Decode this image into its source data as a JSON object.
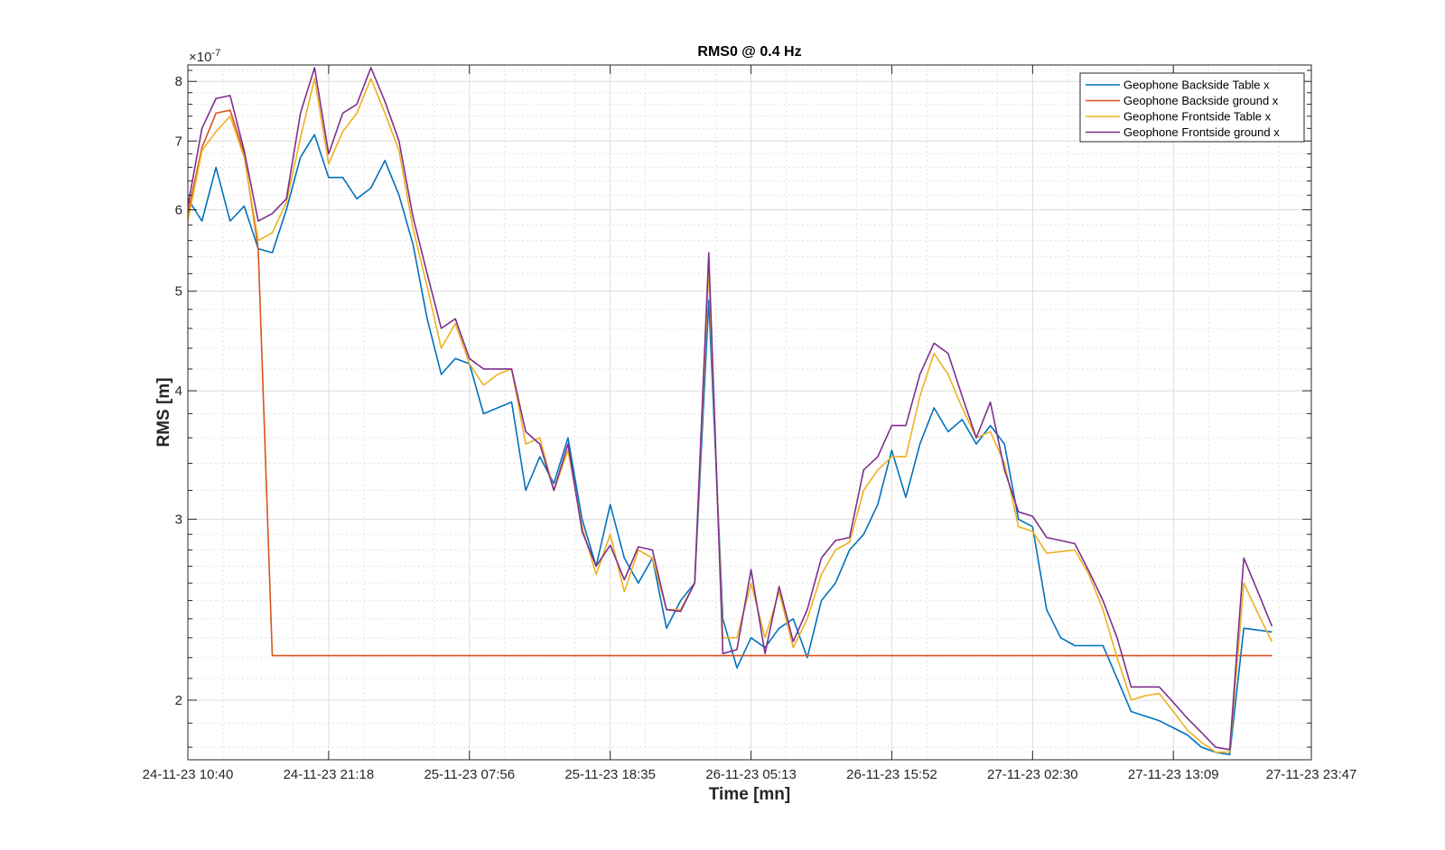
{
  "chart_data": {
    "type": "line",
    "title": "RMS0 @ 0.4 Hz",
    "xlabel": "Time [mn]",
    "ylabel": "RMS [m]",
    "y_scale": "log",
    "y_exponent_label": "×10",
    "y_exponent_power": "-7",
    "y_multiplier": 1e-07,
    "ylim": [
      1.75,
      8.3
    ],
    "xlim": [
      0,
      79.8
    ],
    "grid": true,
    "minor_grid": true,
    "legend_position": "top-right",
    "x_ticks": [
      {
        "x": 0,
        "label": "24-11-23 10:40"
      },
      {
        "x": 10,
        "label": "24-11-23 21:18"
      },
      {
        "x": 20,
        "label": "25-11-23 07:56"
      },
      {
        "x": 30,
        "label": "25-11-23 18:35"
      },
      {
        "x": 40,
        "label": "26-11-23 05:13"
      },
      {
        "x": 50,
        "label": "26-11-23 15:52"
      },
      {
        "x": 60,
        "label": "27-11-23 02:30"
      },
      {
        "x": 70,
        "label": "27-11-23 13:09"
      },
      {
        "x": 80,
        "label": "27-11-23 23:47"
      }
    ],
    "y_ticks": [
      {
        "v": 2,
        "label": "2"
      },
      {
        "v": 3,
        "label": "3"
      },
      {
        "v": 4,
        "label": "4"
      },
      {
        "v": 5,
        "label": "5"
      },
      {
        "v": 6,
        "label": "6"
      },
      {
        "v": 7,
        "label": "7"
      },
      {
        "v": 8,
        "label": "8"
      }
    ],
    "y_minor_ticks": [
      1.8,
      1.9,
      2.1,
      2.2,
      2.3,
      2.4,
      2.5,
      2.6,
      2.7,
      2.8,
      2.9,
      3.2,
      3.4,
      3.6,
      3.8,
      4.2,
      4.4,
      4.6,
      4.8,
      5.2,
      5.4,
      5.6,
      5.8,
      6.2,
      6.4,
      6.6,
      6.8,
      7.2,
      7.4,
      7.6,
      7.8,
      8.2
    ],
    "series": [
      {
        "name": "Geophone Backside Table x",
        "color": "#0072BD",
        "points": [
          [
            0,
            6.15
          ],
          [
            1,
            5.85
          ],
          [
            2,
            6.6
          ],
          [
            3,
            5.85
          ],
          [
            4,
            6.05
          ],
          [
            5,
            5.5
          ],
          [
            6,
            5.45
          ],
          [
            7,
            6.0
          ],
          [
            8,
            6.75
          ],
          [
            9,
            7.1
          ],
          [
            10,
            6.45
          ],
          [
            11,
            6.45
          ],
          [
            12,
            6.15
          ],
          [
            13,
            6.3
          ],
          [
            14,
            6.7
          ],
          [
            15,
            6.2
          ],
          [
            16,
            5.55
          ],
          [
            17,
            4.7
          ],
          [
            18,
            4.15
          ],
          [
            19,
            4.3
          ],
          [
            20,
            4.25
          ],
          [
            21,
            3.8
          ],
          [
            22,
            3.85
          ],
          [
            23,
            3.9
          ],
          [
            24,
            3.2
          ],
          [
            25,
            3.45
          ],
          [
            26,
            3.25
          ],
          [
            27,
            3.6
          ],
          [
            28,
            3.0
          ],
          [
            29,
            2.7
          ],
          [
            30,
            3.1
          ],
          [
            31,
            2.75
          ],
          [
            32,
            2.6
          ],
          [
            33,
            2.75
          ],
          [
            34,
            2.35
          ],
          [
            35,
            2.5
          ],
          [
            36,
            2.6
          ],
          [
            37,
            4.9
          ],
          [
            38,
            2.4
          ],
          [
            39,
            2.15
          ],
          [
            40,
            2.3
          ],
          [
            41,
            2.25
          ],
          [
            42,
            2.35
          ],
          [
            43,
            2.4
          ],
          [
            44,
            2.2
          ],
          [
            45,
            2.5
          ],
          [
            46,
            2.6
          ],
          [
            47,
            2.8
          ],
          [
            48,
            2.9
          ],
          [
            49,
            3.1
          ],
          [
            50,
            3.5
          ],
          [
            51,
            3.15
          ],
          [
            52,
            3.55
          ],
          [
            53,
            3.85
          ],
          [
            54,
            3.65
          ],
          [
            55,
            3.75
          ],
          [
            56,
            3.55
          ],
          [
            57,
            3.7
          ],
          [
            58,
            3.55
          ],
          [
            59,
            3.0
          ],
          [
            60,
            2.95
          ],
          [
            61,
            2.45
          ],
          [
            62,
            2.3
          ],
          [
            63,
            2.26
          ],
          [
            64,
            2.26
          ],
          [
            65,
            2.26
          ],
          [
            66,
            2.1
          ],
          [
            67,
            1.95
          ],
          [
            68,
            1.93
          ],
          [
            69,
            1.91
          ],
          [
            70,
            1.88
          ],
          [
            71,
            1.85
          ],
          [
            72,
            1.8
          ],
          [
            73,
            1.78
          ],
          [
            74,
            1.77
          ],
          [
            75,
            2.35
          ],
          [
            76,
            2.34
          ],
          [
            77,
            2.33
          ]
        ]
      },
      {
        "name": "Geophone Backside ground x",
        "color": "#D95319",
        "points": [
          [
            0,
            5.95
          ],
          [
            1,
            6.9
          ],
          [
            2,
            7.45
          ],
          [
            3,
            7.5
          ],
          [
            4,
            6.8
          ],
          [
            5,
            5.5
          ],
          [
            6,
            2.21
          ],
          [
            8,
            2.21
          ],
          [
            10,
            2.21
          ],
          [
            12,
            2.21
          ],
          [
            14,
            2.21
          ],
          [
            16,
            2.21
          ],
          [
            18,
            2.21
          ],
          [
            20,
            2.21
          ],
          [
            22,
            2.21
          ],
          [
            24,
            2.21
          ],
          [
            26,
            2.21
          ],
          [
            28,
            2.21
          ],
          [
            30,
            2.21
          ],
          [
            32,
            2.21
          ],
          [
            34,
            2.21
          ],
          [
            36,
            2.21
          ],
          [
            38,
            2.21
          ],
          [
            40,
            2.21
          ],
          [
            42,
            2.21
          ],
          [
            44,
            2.21
          ],
          [
            46,
            2.21
          ],
          [
            48,
            2.21
          ],
          [
            50,
            2.21
          ],
          [
            52,
            2.21
          ],
          [
            54,
            2.21
          ],
          [
            56,
            2.21
          ],
          [
            58,
            2.21
          ],
          [
            60,
            2.21
          ],
          [
            62,
            2.21
          ],
          [
            64,
            2.21
          ],
          [
            66,
            2.21
          ],
          [
            68,
            2.21
          ],
          [
            70,
            2.21
          ],
          [
            72,
            2.21
          ],
          [
            74,
            2.21
          ],
          [
            76,
            2.21
          ],
          [
            77,
            2.21
          ]
        ]
      },
      {
        "name": "Geophone Frontside Table x",
        "color": "#EDB120",
        "points": [
          [
            0,
            5.85
          ],
          [
            1,
            6.85
          ],
          [
            2,
            7.15
          ],
          [
            3,
            7.4
          ],
          [
            4,
            6.75
          ],
          [
            5,
            5.6
          ],
          [
            6,
            5.7
          ],
          [
            7,
            6.1
          ],
          [
            8,
            7.05
          ],
          [
            9,
            8.05
          ],
          [
            10,
            6.65
          ],
          [
            11,
            7.15
          ],
          [
            12,
            7.45
          ],
          [
            13,
            8.05
          ],
          [
            14,
            7.45
          ],
          [
            15,
            6.85
          ],
          [
            16,
            5.75
          ],
          [
            17,
            5.05
          ],
          [
            18,
            4.4
          ],
          [
            19,
            4.65
          ],
          [
            20,
            4.25
          ],
          [
            21,
            4.05
          ],
          [
            22,
            4.15
          ],
          [
            23,
            4.2
          ],
          [
            24,
            3.55
          ],
          [
            25,
            3.6
          ],
          [
            26,
            3.2
          ],
          [
            27,
            3.5
          ],
          [
            28,
            2.95
          ],
          [
            29,
            2.65
          ],
          [
            30,
            2.9
          ],
          [
            31,
            2.55
          ],
          [
            32,
            2.8
          ],
          [
            33,
            2.75
          ],
          [
            34,
            2.45
          ],
          [
            35,
            2.45
          ],
          [
            36,
            2.6
          ],
          [
            37,
            5.25
          ],
          [
            38,
            2.3
          ],
          [
            39,
            2.3
          ],
          [
            40,
            2.6
          ],
          [
            41,
            2.3
          ],
          [
            42,
            2.55
          ],
          [
            43,
            2.25
          ],
          [
            44,
            2.4
          ],
          [
            45,
            2.65
          ],
          [
            46,
            2.8
          ],
          [
            47,
            2.85
          ],
          [
            48,
            3.2
          ],
          [
            49,
            3.35
          ],
          [
            50,
            3.45
          ],
          [
            51,
            3.45
          ],
          [
            52,
            3.95
          ],
          [
            53,
            4.35
          ],
          [
            54,
            4.15
          ],
          [
            55,
            3.85
          ],
          [
            56,
            3.6
          ],
          [
            57,
            3.65
          ],
          [
            58,
            3.4
          ],
          [
            59,
            2.95
          ],
          [
            60,
            2.92
          ],
          [
            61,
            2.78
          ],
          [
            62,
            2.79
          ],
          [
            63,
            2.8
          ],
          [
            64,
            2.65
          ],
          [
            65,
            2.45
          ],
          [
            66,
            2.2
          ],
          [
            67,
            2.0
          ],
          [
            68,
            2.02
          ],
          [
            69,
            2.03
          ],
          [
            70,
            1.95
          ],
          [
            71,
            1.87
          ],
          [
            72,
            1.82
          ],
          [
            73,
            1.78
          ],
          [
            74,
            1.78
          ],
          [
            75,
            2.6
          ],
          [
            76,
            2.43
          ],
          [
            77,
            2.28
          ]
        ]
      },
      {
        "name": "Geophone Frontside ground x",
        "color": "#7E2F8E",
        "points": [
          [
            0,
            6.05
          ],
          [
            1,
            7.2
          ],
          [
            2,
            7.7
          ],
          [
            3,
            7.75
          ],
          [
            4,
            6.85
          ],
          [
            5,
            5.85
          ],
          [
            6,
            5.95
          ],
          [
            7,
            6.15
          ],
          [
            8,
            7.45
          ],
          [
            9,
            8.25
          ],
          [
            10,
            6.8
          ],
          [
            11,
            7.45
          ],
          [
            12,
            7.6
          ],
          [
            13,
            8.25
          ],
          [
            14,
            7.65
          ],
          [
            15,
            7.0
          ],
          [
            16,
            5.9
          ],
          [
            17,
            5.2
          ],
          [
            18,
            4.6
          ],
          [
            19,
            4.7
          ],
          [
            20,
            4.3
          ],
          [
            21,
            4.2
          ],
          [
            22,
            4.2
          ],
          [
            23,
            4.2
          ],
          [
            24,
            3.65
          ],
          [
            25,
            3.55
          ],
          [
            26,
            3.2
          ],
          [
            27,
            3.55
          ],
          [
            28,
            2.92
          ],
          [
            29,
            2.7
          ],
          [
            30,
            2.83
          ],
          [
            31,
            2.62
          ],
          [
            32,
            2.82
          ],
          [
            33,
            2.8
          ],
          [
            34,
            2.45
          ],
          [
            35,
            2.44
          ],
          [
            36,
            2.6
          ],
          [
            37,
            5.45
          ],
          [
            38,
            2.22
          ],
          [
            39,
            2.24
          ],
          [
            40,
            2.68
          ],
          [
            41,
            2.22
          ],
          [
            42,
            2.58
          ],
          [
            43,
            2.28
          ],
          [
            44,
            2.45
          ],
          [
            45,
            2.75
          ],
          [
            46,
            2.86
          ],
          [
            47,
            2.88
          ],
          [
            48,
            3.35
          ],
          [
            49,
            3.45
          ],
          [
            50,
            3.7
          ],
          [
            51,
            3.7
          ],
          [
            52,
            4.15
          ],
          [
            53,
            4.45
          ],
          [
            54,
            4.35
          ],
          [
            55,
            3.95
          ],
          [
            56,
            3.6
          ],
          [
            57,
            3.9
          ],
          [
            58,
            3.35
          ],
          [
            59,
            3.05
          ],
          [
            60,
            3.02
          ],
          [
            61,
            2.88
          ],
          [
            62,
            2.86
          ],
          [
            63,
            2.84
          ],
          [
            64,
            2.67
          ],
          [
            65,
            2.5
          ],
          [
            66,
            2.3
          ],
          [
            67,
            2.06
          ],
          [
            68,
            2.06
          ],
          [
            69,
            2.06
          ],
          [
            70,
            1.99
          ],
          [
            71,
            1.92
          ],
          [
            72,
            1.86
          ],
          [
            73,
            1.8
          ],
          [
            74,
            1.79
          ],
          [
            75,
            2.75
          ],
          [
            76,
            2.55
          ],
          [
            77,
            2.36
          ]
        ]
      }
    ]
  }
}
